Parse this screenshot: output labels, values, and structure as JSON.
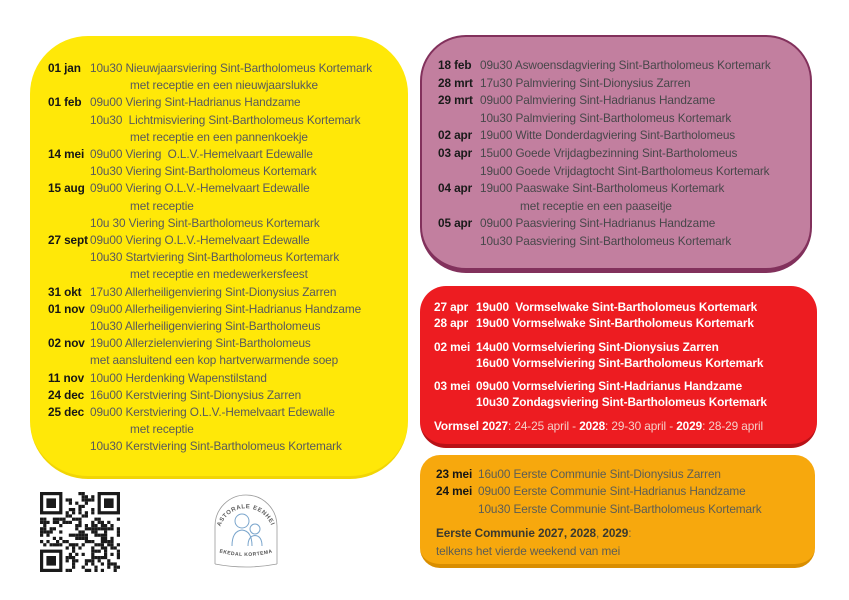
{
  "page": {
    "background": "#ffffff"
  },
  "blocks": [
    {
      "name": "yearly-calendar",
      "colors": {
        "bg": "#ffe808",
        "border": "#e5ce00",
        "date": "#161616",
        "text": "#58595c"
      },
      "bold_text": false,
      "lines": [
        {
          "date": "01 jan",
          "text": "10u30 Nieuwjaarsviering Sint-Bartholomeus Kortemark",
          "indent": 0
        },
        {
          "text": "met receptie en een nieuwjaarslukke",
          "indent": 2
        },
        {
          "date": "01 feb",
          "text": "09u00 Viering Sint-Hadrianus Handzame",
          "indent": 0
        },
        {
          "text": "10u30  Lichtmisviering Sint-Bartholomeus Kortemark",
          "indent": 1
        },
        {
          "text": "met receptie en een pannenkoekje",
          "indent": 2
        },
        {
          "date": "14 mei",
          "text": "09u00 Viering  O.L.V.-Hemelvaart Edewalle",
          "indent": 0
        },
        {
          "text": "10u30 Viering Sint-Bartholomeus Kortemark",
          "indent": 1
        },
        {
          "date": "15 aug",
          "text": "09u00 Viering O.L.V.-Hemelvaart Edewalle",
          "indent": 0
        },
        {
          "text": "met receptie",
          "indent": 2
        },
        {
          "text": "10u 30 Viering Sint-Bartholomeus Kortemark",
          "indent": 1
        },
        {
          "date": "27 sept",
          "text": "09u00 Viering O.L.V.-Hemelvaart Edewalle",
          "indent": 0
        },
        {
          "text": "10u30 Startviering Sint-Bartholomeus Kortemark",
          "indent": 1
        },
        {
          "text": "met receptie en medewerkersfeest",
          "indent": 2
        },
        {
          "date": "31 okt",
          "text": "17u30 Allerheiligenviering Sint-Dionysius Zarren",
          "indent": 0
        },
        {
          "date": "01 nov",
          "text": "09u00 Allerheiligenviering Sint-Hadrianus Handzame",
          "indent": 0
        },
        {
          "text": "10u30 Allerheiligenviering Sint-Bartholomeus",
          "indent": 1
        },
        {
          "date": "02 nov",
          "text": "19u00 Allerzielenviering Sint-Bartholomeus",
          "indent": 0
        },
        {
          "text": "met aansluitend een kop hartverwarmende soep",
          "indent": 1
        },
        {
          "date": "11 nov",
          "text": "10u00 Herdenking Wapenstilstand",
          "indent": 0
        },
        {
          "date": "24 dec",
          "text": "16u00 Kerstviering Sint-Dionysius Zarren",
          "indent": 0
        },
        {
          "date": "25 dec",
          "text": "09u00 Kerstviering O.L.V.-Hemelvaart Edewalle",
          "indent": 0
        },
        {
          "text": "met receptie",
          "indent": 2
        },
        {
          "text": "10u30 Kerstviering Sint-Bartholomeus Kortemark",
          "indent": 1
        }
      ]
    },
    {
      "name": "lent-easter-calendar",
      "colors": {
        "bg": "#c27f9f",
        "border": "#82315c",
        "date": "#1a1a1a",
        "text": "#47474a"
      },
      "bold_text": false,
      "lines": [
        {
          "date": "18 feb",
          "text": "09u30 Aswoensdagviering Sint-Bartholomeus Kortemark",
          "indent": 0
        },
        {
          "date": "28 mrt",
          "text": "17u30 Palmviering Sint-Dionysius Zarren",
          "indent": 0
        },
        {
          "date": "29 mrt",
          "text": "09u00 Palmviering Sint-Hadrianus Handzame",
          "indent": 0
        },
        {
          "text": "10u30 Palmviering Sint-Bartholomeus Kortemark",
          "indent": 1
        },
        {
          "date": "02 apr",
          "text": "19u00 Witte Donderdagviering Sint-Bartholomeus",
          "indent": 0
        },
        {
          "date": "03 apr",
          "text": "15u00 Goede Vrijdagbezinning Sint-Bartholomeus",
          "indent": 0
        },
        {
          "text": "19u00 Goede Vrijdagtocht Sint-Bartholomeus Kortemark",
          "indent": 1
        },
        {
          "date": "04 apr",
          "text": "19u00 Paaswake Sint-Bartholomeus Kortemark",
          "indent": 0
        },
        {
          "text": "met receptie en een paaseitje",
          "indent": 2
        },
        {
          "date": "05 apr",
          "text": "09u00 Paasviering Sint-Hadrianus Handzame",
          "indent": 0
        },
        {
          "text": "10u30 Paasviering Sint-Bartholomeus Kortemark",
          "indent": 1
        }
      ]
    },
    {
      "name": "vormsel-calendar",
      "colors": {
        "bg": "#ed1c21",
        "border": "#b91117",
        "date": "#ffffff",
        "text": "#ffffff",
        "strong": "#ffffff",
        "light": "#f6cfc9"
      },
      "bold_text": true,
      "lines": [
        {
          "date": "27 apr",
          "text": "19u00  Vormselwake Sint-Bartholomeus Kortemark",
          "indent": 0
        },
        {
          "date": "28 apr",
          "text": "19u00 Vormselwake Sint-Bartholomeus Kortemark",
          "indent": 0
        },
        {
          "gap": true
        },
        {
          "date": "02 mei",
          "text": "14u00 Vormselviering Sint-Dionysius Zarren",
          "indent": 0
        },
        {
          "text": "16u00 Vormselviering Sint-Bartholomeus Kortemark",
          "indent": 1
        },
        {
          "gap": true
        },
        {
          "date": "03 mei",
          "text": "09u00 Vormselviering Sint-Hadrianus Handzame",
          "indent": 0
        },
        {
          "text": "10u30 Zondagsviering Sint-Bartholomeus Kortemark",
          "indent": 1
        },
        {
          "gap": true
        },
        {
          "parts": [
            {
              "text": "Vormsel 2027",
              "bold": true
            },
            {
              "text": ": 24-25 april - ",
              "bold": false
            },
            {
              "text": "2028",
              "bold": true
            },
            {
              "text": ": 29-30 april - ",
              "bold": false
            },
            {
              "text": "2029",
              "bold": true
            },
            {
              "text": ": 28-29 april",
              "bold": false
            }
          ],
          "indent": 0
        }
      ]
    },
    {
      "name": "eerste-communie-calendar",
      "colors": {
        "bg": "#f7a80d",
        "border": "#d98e00",
        "date": "#161616",
        "text": "#5c5d55",
        "strong": "#3a392f"
      },
      "bold_text": false,
      "lines": [
        {
          "date": "23 mei",
          "text": "16u00 Eerste Communie Sint-Dionysius Zarren",
          "indent": 0
        },
        {
          "date": "24 mei",
          "text": "09u00 Eerste Communie Sint-Hadrianus Handzame",
          "indent": 0
        },
        {
          "text": "10u30 Eerste Communie Sint-Bartholomeus Kortemark",
          "indent": 1
        },
        {
          "gap": true
        },
        {
          "parts": [
            {
              "text": "Eerste Communie 2027, 2028",
              "bold": true
            },
            {
              "text": ", ",
              "bold": false
            },
            {
              "text": "2029",
              "bold": true
            },
            {
              "text": ":",
              "bold": false
            }
          ],
          "indent": 0
        },
        {
          "parts": [
            {
              "text": "telkens het vierde weekend van mei",
              "bold": false
            }
          ],
          "indent": 0
        }
      ]
    }
  ],
  "logo": {
    "top_text": "PASTORALE  EENHEID",
    "bottom_text": "KREKEDAL  KORTEMARK",
    "figure_color": "#7aa5cc",
    "outline_color": "#9a9a9a"
  },
  "icons": {
    "qr_code": "qr-code",
    "logo_figures": "parent-child-figures-icon"
  }
}
